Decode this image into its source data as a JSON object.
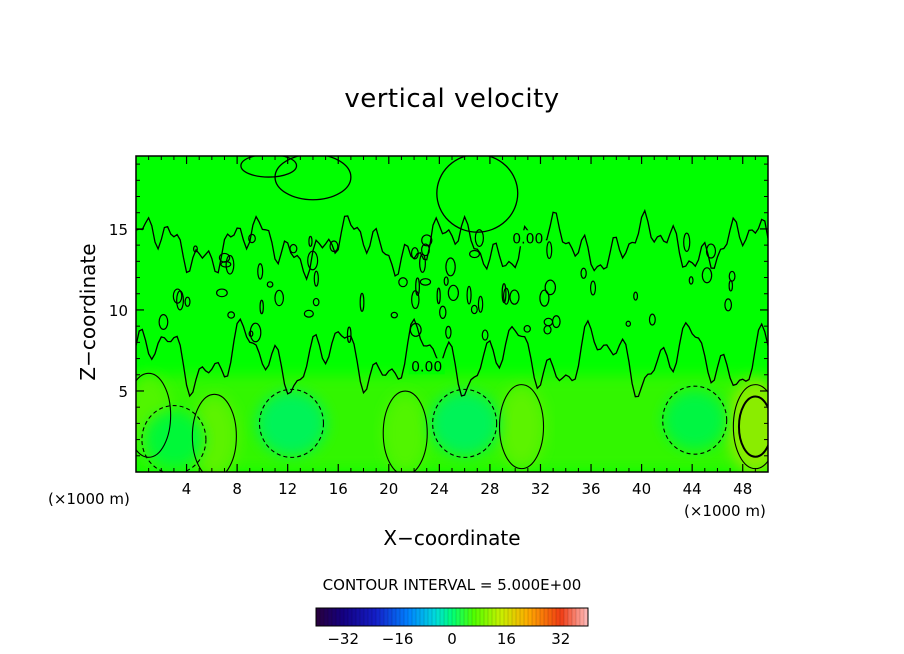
{
  "chart_data": {
    "type": "heatmap",
    "title": "vertical velocity",
    "xlabel": "X−coordinate",
    "ylabel": "Z−coordinate",
    "x_unit": "(×1000 m)",
    "y_unit": "(×1000 m)",
    "xlim": [
      0,
      50
    ],
    "ylim": [
      0,
      19.5
    ],
    "x_ticks": [
      4,
      8,
      12,
      16,
      20,
      24,
      28,
      32,
      36,
      40,
      44,
      48
    ],
    "y_ticks": [
      5,
      10,
      15
    ],
    "contour_interval_text": "CONTOUR INTERVAL = 5.000E+00",
    "contour_labels": [
      {
        "text": "0.00",
        "x": 31.0,
        "y": 14.3
      },
      {
        "text": "0.00",
        "x": 23.0,
        "y": 6.4
      }
    ],
    "colorbar": {
      "range": [
        -40,
        40
      ],
      "ticks": [
        -32,
        -16,
        0,
        16,
        32
      ],
      "tick_labels": [
        "−32",
        "−16",
        "0",
        "16",
        "32"
      ]
    },
    "features": [
      {
        "kind": "updraft",
        "x": 49.0,
        "z": 2.8,
        "value": 12
      },
      {
        "kind": "updraft",
        "x": 1.0,
        "z": 3.5,
        "value": 7
      },
      {
        "kind": "updraft",
        "x": 6.2,
        "z": 2.2,
        "value": 8
      },
      {
        "kind": "updraft",
        "x": 21.3,
        "z": 2.4,
        "value": 7
      },
      {
        "kind": "updraft",
        "x": 30.5,
        "z": 2.8,
        "value": 8
      },
      {
        "kind": "downdraft",
        "x": 12.3,
        "z": 3.0,
        "value": -8
      },
      {
        "kind": "downdraft",
        "x": 26.0,
        "z": 3.0,
        "value": -8
      },
      {
        "kind": "downdraft",
        "x": 3.0,
        "z": 2.0,
        "value": -5
      },
      {
        "kind": "downdraft",
        "x": 44.2,
        "z": 3.2,
        "value": -6
      }
    ]
  }
}
